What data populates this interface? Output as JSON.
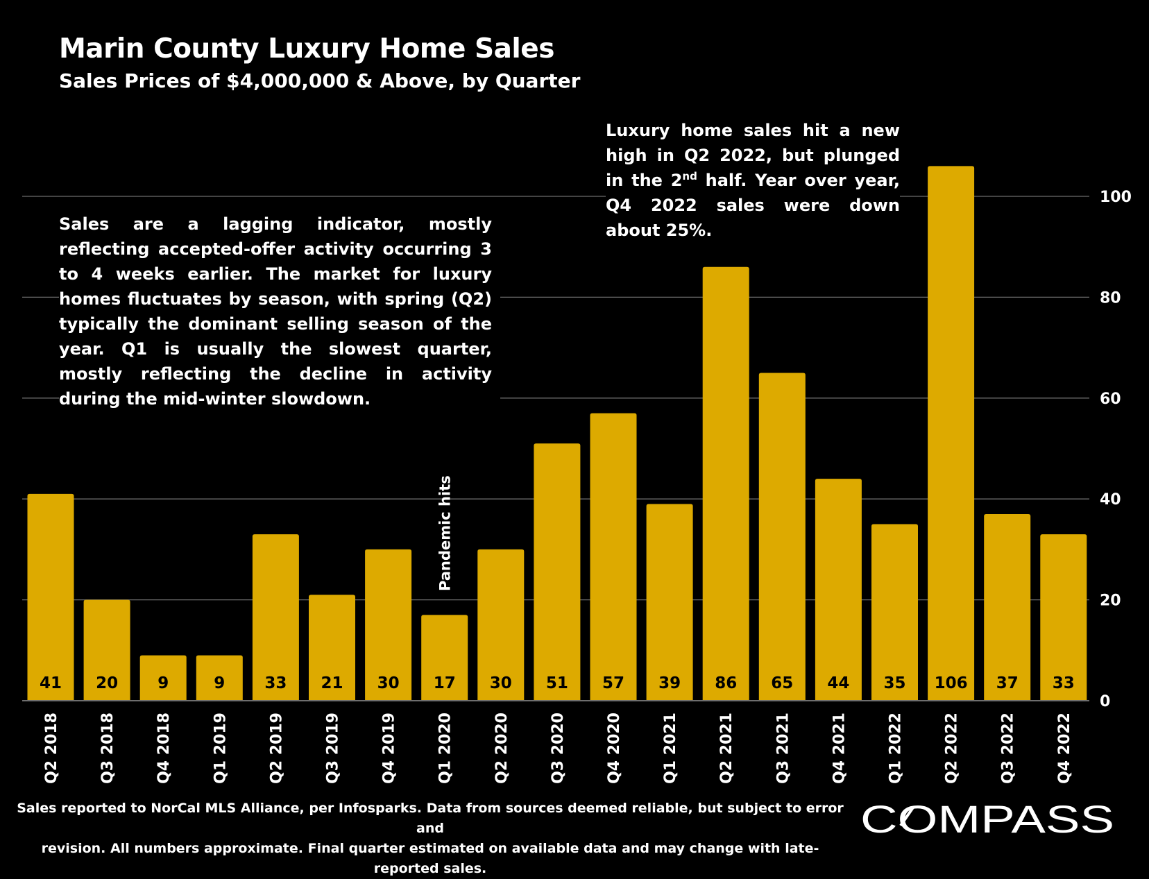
{
  "title": "Marin County Luxury Home Sales",
  "subtitle": "Sales Prices of $4,000,000 & Above, by Quarter",
  "notes": {
    "left": "Sales are a lagging indicator, mostly reflecting accepted-offer activity occurring 3 to 4 weeks earlier. The market for luxury homes fluctuates by season, with spring (Q2) typically the dominant selling season of the year. Q1 is usually the slowest quarter, mostly reflecting the decline in activity during the mid-winter slowdown.",
    "right_before": "Luxury home sales hit a new high in Q2 2022, but plunged in the 2",
    "right_sup": "nd",
    "right_after": " half. Year over year, Q4 2022 sales were down about 25%."
  },
  "source": {
    "line1": "Sales reported to NorCal MLS Alliance, per Infosparks. Data from sources deemed reliable, but subject to error and",
    "line2": "revision. All numbers approximate. Final quarter estimated on available data and may change with late-reported sales."
  },
  "logo": {
    "text": "COMPASS"
  },
  "colors": {
    "background": "#000000",
    "bar": "#DDAA00",
    "gridline": "#6E6E6E",
    "text": "#FFFFFF",
    "bar_label": "#000000"
  },
  "chart_data": {
    "type": "bar",
    "title": "Marin County Luxury Home Sales",
    "subtitle": "Sales Prices of $4,000,000 & Above, by Quarter",
    "categories": [
      "Q2 2018",
      "Q3 2018",
      "Q4 2018",
      "Q1 2019",
      "Q2 2019",
      "Q3 2019",
      "Q4 2019",
      "Q1 2020",
      "Q2 2020",
      "Q3 2020",
      "Q4 2020",
      "Q1 2021",
      "Q2 2021",
      "Q3 2021",
      "Q4 2021",
      "Q1 2022",
      "Q2 2022",
      "Q3 2022",
      "Q4 2022"
    ],
    "values": [
      41,
      20,
      9,
      9,
      33,
      21,
      30,
      17,
      30,
      51,
      57,
      39,
      86,
      65,
      44,
      35,
      106,
      37,
      33
    ],
    "data_labels": [
      "41",
      "20",
      "9",
      "9",
      "33",
      "21",
      "30",
      "17",
      "30",
      "51",
      "57",
      "39",
      "86",
      "65",
      "44",
      "35",
      "106",
      "37",
      "33"
    ],
    "ylim": [
      0,
      106
    ],
    "yticks": [
      0,
      20,
      40,
      60,
      80,
      100
    ],
    "y_axis_side": "right",
    "grid": true,
    "legend": "none",
    "annotations": [
      {
        "text": "Pandemic hits",
        "category": "Q1 2020",
        "orientation": "vertical"
      }
    ]
  }
}
